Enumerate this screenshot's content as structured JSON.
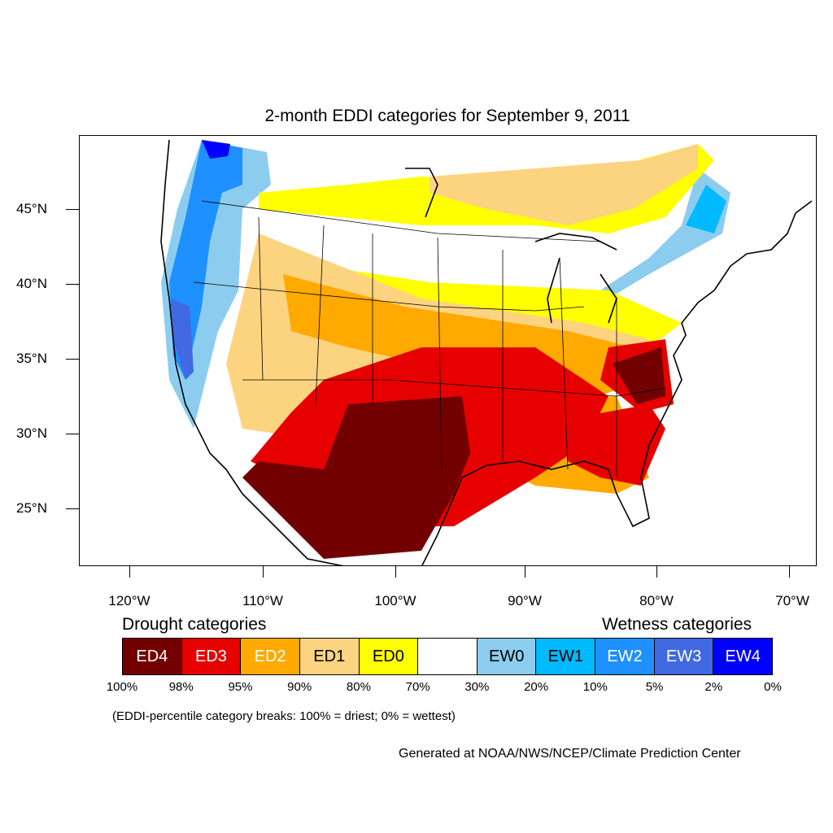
{
  "title": "2-month EDDI categories for September 9, 2011",
  "map": {
    "lat_labels": [
      "45°N",
      "40°N",
      "35°N",
      "30°N",
      "25°N"
    ],
    "lon_labels": [
      "120°W",
      "110°W",
      "100°W",
      "90°W",
      "80°W",
      "70°W"
    ]
  },
  "legend": {
    "drought_heading": "Drought categories",
    "wetness_heading": "Wetness categories",
    "categories": [
      {
        "label": "ED4",
        "color": "#730000",
        "text_color": "#ffffff"
      },
      {
        "label": "ED3",
        "color": "#e60000",
        "text_color": "#ffffff"
      },
      {
        "label": "ED2",
        "color": "#ffaa00",
        "text_color": "#ffffff"
      },
      {
        "label": "ED1",
        "color": "#fcd37f",
        "text_color": "#000000"
      },
      {
        "label": "ED0",
        "color": "#ffff00",
        "text_color": "#000000"
      },
      {
        "label": "",
        "color": "#ffffff",
        "text_color": "#000000"
      },
      {
        "label": "EW0",
        "color": "#8ccdef",
        "text_color": "#000000"
      },
      {
        "label": "EW1",
        "color": "#00b9ff",
        "text_color": "#000000"
      },
      {
        "label": "EW2",
        "color": "#1e90ff",
        "text_color": "#ffffff"
      },
      {
        "label": "EW3",
        "color": "#4169e1",
        "text_color": "#ffffff"
      },
      {
        "label": "EW4",
        "color": "#0000ff",
        "text_color": "#ffffff"
      }
    ],
    "percent_breaks": [
      "100%",
      "98%",
      "95%",
      "90%",
      "80%",
      "70%",
      "30%",
      "20%",
      "10%",
      "5%",
      "2%",
      "0%"
    ]
  },
  "note": "(EDDI-percentile category breaks: 100% = driest; 0% = wettest)",
  "credit": "Generated at NOAA/NWS/NCEP/Climate Prediction Center"
}
